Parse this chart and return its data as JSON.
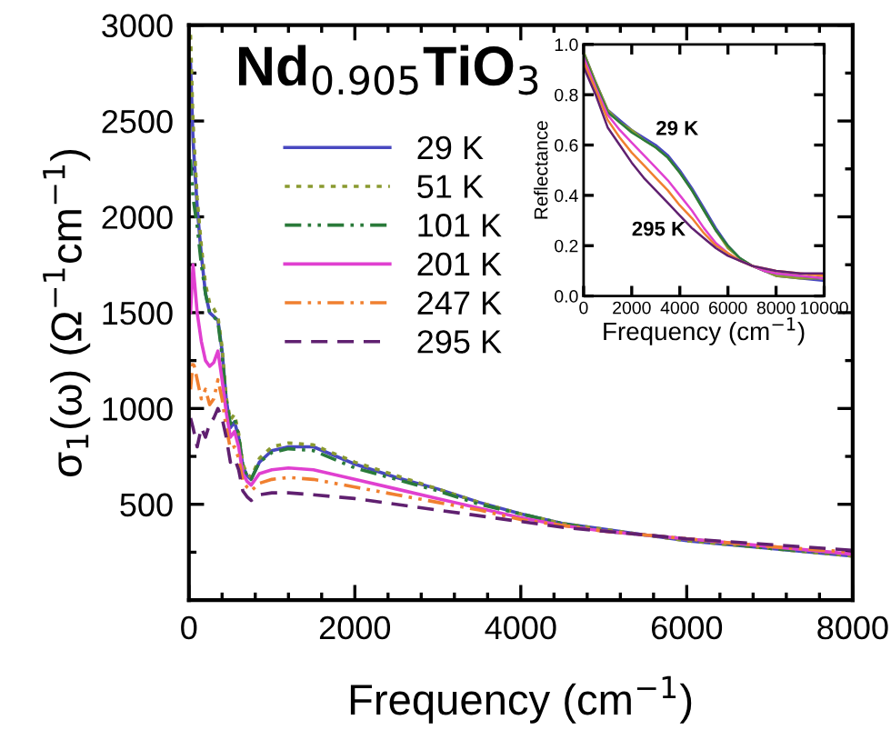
{
  "chart_data": [
    {
      "type": "line",
      "title": "Nd$_{0.905}$TiO$_{3}$",
      "xlabel": "Frequency (cm$^{−1}$)",
      "ylabel": "σ$_{1}$(ω) (Ω$^{−1}$cm$^{−1}$)",
      "x": [
        20,
        50,
        100,
        150,
        200,
        250,
        300,
        350,
        400,
        450,
        500,
        550,
        600,
        650,
        700,
        750,
        850,
        1000,
        1200,
        1500,
        2000,
        2500,
        3000,
        3500,
        4000,
        4500,
        5000,
        5500,
        6000,
        7000,
        8000
      ],
      "xlim": [
        0,
        8000
      ],
      "ylim": [
        0,
        3000
      ],
      "xticks": [
        0,
        {
          "value": 400,
          "label": null
        },
        {
          "value": 800,
          "label": null
        },
        {
          "value": 1200,
          "label": null
        },
        {
          "value": 1600,
          "label": null
        },
        2000,
        {
          "value": 2400,
          "label": null
        },
        {
          "value": 2800,
          "label": null
        },
        {
          "value": 3200,
          "label": null
        },
        {
          "value": 3600,
          "label": null
        },
        4000,
        {
          "value": 4400,
          "label": null
        },
        {
          "value": 4800,
          "label": null
        },
        {
          "value": 5200,
          "label": null
        },
        {
          "value": 5600,
          "label": null
        },
        6000,
        {
          "value": 6400,
          "label": null
        },
        {
          "value": 6800,
          "label": null
        },
        {
          "value": 7200,
          "label": null
        },
        {
          "value": 7600,
          "label": null
        },
        8000
      ],
      "yticks": [
        {
          "value": 250,
          "label": null
        },
        500,
        {
          "value": 750,
          "label": null
        },
        1000,
        {
          "value": 1250,
          "label": null
        },
        1500,
        {
          "value": 1750,
          "label": null
        },
        2000,
        {
          "value": 2250,
          "label": null
        },
        2500,
        {
          "value": 2750,
          "label": null
        },
        3000
      ],
      "grid": false,
      "legend": "top left",
      "marker": "none",
      "series": [
        {
          "name": "29 K",
          "color": "#4848c0",
          "line_style": "solid",
          "values": [
            2800,
            2400,
            2050,
            1800,
            1600,
            1500,
            1480,
            1460,
            1300,
            1050,
            900,
            930,
            850,
            700,
            650,
            630,
            720,
            780,
            800,
            800,
            710,
            640,
            580,
            510,
            450,
            400,
            370,
            340,
            310,
            270,
            230
          ]
        },
        {
          "name": "51 K",
          "color": "#8a9a30",
          "line_style": "dotted",
          "values": [
            2950,
            2500,
            2100,
            1850,
            1650,
            1550,
            1520,
            1480,
            1320,
            1060,
            940,
            970,
            870,
            710,
            660,
            640,
            740,
            800,
            820,
            810,
            720,
            650,
            580,
            510,
            450,
            400,
            370,
            340,
            310,
            270,
            230
          ]
        },
        {
          "name": "101 K",
          "color": "#2a7a3a",
          "line_style": "dashdot",
          "values": [
            2300,
            2100,
            1950,
            1750,
            1600,
            1500,
            1480,
            1450,
            1280,
            1040,
            920,
            950,
            860,
            700,
            650,
            630,
            720,
            770,
            790,
            780,
            690,
            630,
            570,
            500,
            450,
            400,
            360,
            340,
            320,
            270,
            240
          ]
        },
        {
          "name": "201 K",
          "color": "#e040d0",
          "line_style": "solid",
          "values": [
            1500,
            1750,
            1500,
            1350,
            1250,
            1220,
            1240,
            1300,
            1150,
            980,
            850,
            880,
            800,
            660,
            620,
            600,
            660,
            680,
            690,
            680,
            630,
            580,
            530,
            480,
            430,
            390,
            360,
            340,
            320,
            280,
            240
          ]
        },
        {
          "name": "247 K",
          "color": "#f08030",
          "line_style": "dashdot",
          "values": [
            1100,
            1250,
            1150,
            1050,
            1100,
            1020,
            1050,
            1150,
            1050,
            900,
            790,
            800,
            740,
            620,
            590,
            570,
            610,
            630,
            640,
            630,
            590,
            550,
            510,
            470,
            420,
            390,
            360,
            340,
            320,
            280,
            250
          ]
        },
        {
          "name": "295 K",
          "color": "#602070",
          "line_style": "dashed",
          "values": [
            950,
            900,
            800,
            900,
            850,
            920,
            950,
            1000,
            950,
            850,
            720,
            740,
            680,
            570,
            540,
            520,
            550,
            560,
            560,
            550,
            530,
            500,
            470,
            440,
            410,
            380,
            360,
            340,
            320,
            290,
            260
          ]
        }
      ]
    },
    {
      "type": "line",
      "xlabel": "Frequency (cm$^{−1}$)",
      "ylabel": "Reflectance",
      "annotations": [
        "29 K",
        "295 K"
      ],
      "x": [
        0,
        500,
        1000,
        1500,
        2000,
        2500,
        3000,
        3500,
        4000,
        4500,
        5000,
        5500,
        6000,
        6500,
        7000,
        7500,
        8000,
        9000,
        10000
      ],
      "xlim": [
        0,
        10000
      ],
      "ylim": [
        0,
        1.0
      ],
      "xticks": [
        0,
        2000,
        4000,
        6000,
        8000,
        10000
      ],
      "yticks": [
        {
          "value": 0,
          "label": "0.0"
        },
        {
          "value": 0.2,
          "label": "0.2"
        },
        {
          "value": 0.4,
          "label": "0.4"
        },
        {
          "value": 0.6,
          "label": "0.6"
        },
        {
          "value": 0.8,
          "label": "0.8"
        },
        {
          "value": 1.0,
          "label": "1.0"
        }
      ],
      "grid": false,
      "marker": "none",
      "series": [
        {
          "color": "#4848c0",
          "values": [
            0.97,
            0.85,
            0.74,
            0.7,
            0.66,
            0.63,
            0.6,
            0.56,
            0.5,
            0.43,
            0.35,
            0.27,
            0.2,
            0.15,
            0.12,
            0.1,
            0.08,
            0.07,
            0.06
          ]
        },
        {
          "color": "#8a9a30",
          "values": [
            0.97,
            0.85,
            0.74,
            0.69,
            0.66,
            0.62,
            0.59,
            0.55,
            0.49,
            0.42,
            0.34,
            0.26,
            0.19,
            0.15,
            0.12,
            0.1,
            0.08,
            0.07,
            0.07
          ]
        },
        {
          "color": "#2a7a3a",
          "values": [
            0.96,
            0.84,
            0.73,
            0.69,
            0.65,
            0.62,
            0.59,
            0.55,
            0.49,
            0.42,
            0.34,
            0.26,
            0.2,
            0.15,
            0.12,
            0.1,
            0.09,
            0.08,
            0.07
          ]
        },
        {
          "color": "#e040d0",
          "values": [
            0.95,
            0.83,
            0.72,
            0.66,
            0.61,
            0.56,
            0.51,
            0.46,
            0.4,
            0.34,
            0.27,
            0.21,
            0.17,
            0.14,
            0.12,
            0.1,
            0.09,
            0.08,
            0.07
          ]
        },
        {
          "color": "#f08030",
          "values": [
            0.93,
            0.82,
            0.7,
            0.63,
            0.57,
            0.52,
            0.47,
            0.42,
            0.36,
            0.31,
            0.25,
            0.2,
            0.17,
            0.14,
            0.12,
            0.11,
            0.1,
            0.09,
            0.08
          ]
        },
        {
          "color": "#602070",
          "values": [
            0.91,
            0.8,
            0.67,
            0.6,
            0.53,
            0.47,
            0.42,
            0.37,
            0.32,
            0.27,
            0.23,
            0.19,
            0.16,
            0.14,
            0.12,
            0.11,
            0.1,
            0.09,
            0.09
          ]
        }
      ]
    }
  ]
}
